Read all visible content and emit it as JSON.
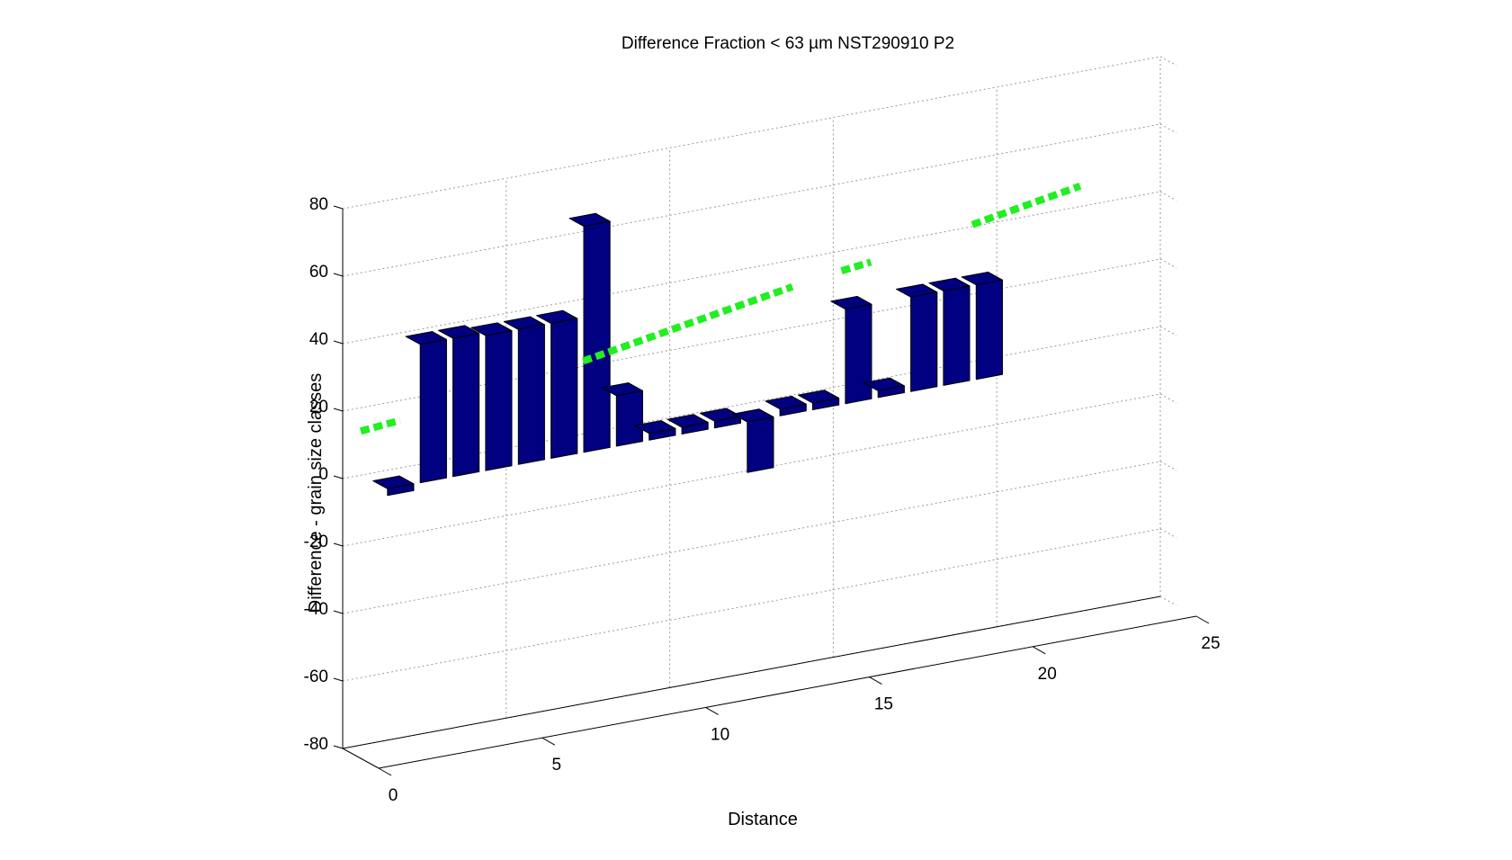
{
  "chart_data": {
    "type": "bar",
    "title": "Difference Fraction < 63 µm NST290910 P2",
    "xlabel": "Distance",
    "ylabel": "Difference - grain size classes",
    "xlim": [
      0,
      25
    ],
    "ylim": [
      -80,
      80
    ],
    "x_ticks": [
      "0",
      "5",
      "10",
      "15",
      "20",
      "25"
    ],
    "y_ticks": [
      "80",
      "60",
      "40",
      "20",
      "0",
      "-20",
      "-40",
      "-60",
      "-80"
    ],
    "grid": true,
    "bar_color": "#000080",
    "trend_color": "#22ee22",
    "categories": [
      1,
      2,
      3,
      4,
      5,
      6,
      7,
      8,
      9,
      10,
      11,
      12,
      13,
      14,
      15,
      16,
      17,
      18,
      19
    ],
    "values": [
      -2,
      41,
      41,
      40,
      40,
      40,
      67,
      15,
      2,
      2,
      2,
      -15,
      2,
      2,
      28,
      2,
      28,
      28,
      28
    ],
    "trend_segments": [
      {
        "x": [
          0,
          1.2
        ],
        "y": [
          17,
          18
        ]
      },
      {
        "x": [
          6.8,
          13.2
        ],
        "y": [
          25.5,
          36
        ]
      },
      {
        "x": [
          14.7,
          15.6
        ],
        "y": [
          38,
          39
        ]
      },
      {
        "x": [
          18.7,
          22
        ],
        "y": [
          44.5,
          50
        ]
      }
    ]
  }
}
